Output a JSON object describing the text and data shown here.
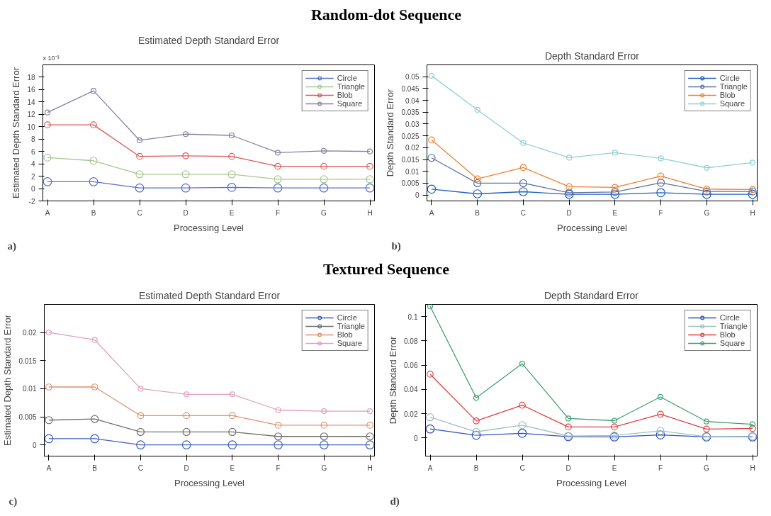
{
  "chart_data": [
    {
      "type": "line",
      "title": "Estimated Depth Standard Error",
      "xlabel": "Processing Level",
      "ylabel": "Estimated Depth Standard Error",
      "annotations": [
        "Random-dot Sequence",
        "x 10⁻³",
        "a)"
      ],
      "categories": [
        "A",
        "B",
        "C",
        "D",
        "E",
        "F",
        "G",
        "H"
      ],
      "ylim": [
        -2,
        20
      ],
      "yticks": [
        -2,
        0,
        2,
        4,
        6,
        8,
        10,
        12,
        14,
        16,
        18
      ],
      "grid": false,
      "legend": "top right",
      "marker": "circle",
      "series": [
        {
          "name": "Circle",
          "color": "#5a6fd0",
          "values": [
            1.1,
            1.1,
            0.1,
            0.1,
            0.2,
            0.1,
            0.1,
            0.1
          ]
        },
        {
          "name": "Triangle",
          "color": "#a8c890",
          "values": [
            5.0,
            4.5,
            2.3,
            2.3,
            2.3,
            1.5,
            1.5,
            1.5
          ]
        },
        {
          "name": "Blob",
          "color": "#e05858",
          "values": [
            10.3,
            10.3,
            5.2,
            5.3,
            5.2,
            3.6,
            3.6,
            3.6
          ]
        },
        {
          "name": "Square",
          "color": "#8a80a0",
          "values": [
            12.3,
            15.8,
            7.8,
            8.8,
            8.6,
            5.8,
            6.1,
            6.0
          ]
        }
      ]
    },
    {
      "type": "line",
      "title": "Depth Standard Error",
      "xlabel": "Processing Level",
      "ylabel": "Depth Standard Error",
      "annotations": [
        "b)"
      ],
      "categories": [
        "A",
        "B",
        "C",
        "D",
        "E",
        "F",
        "G",
        "H"
      ],
      "ylim": [
        -0.0025,
        0.055
      ],
      "yticks": [
        0,
        0.005,
        0.01,
        0.015,
        0.02,
        0.025,
        0.03,
        0.035,
        0.04,
        0.045,
        0.05
      ],
      "grid": false,
      "legend": "top right",
      "marker": "circle",
      "series": [
        {
          "name": "Circle",
          "color": "#2060c0",
          "values": [
            0.0025,
            0.0005,
            0.0014,
            0.0003,
            0.0003,
            0.001,
            0.0003,
            0.0003
          ]
        },
        {
          "name": "Triangle",
          "color": "#6070a0",
          "values": [
            0.0157,
            0.005,
            0.005,
            0.001,
            0.0013,
            0.0052,
            0.0015,
            0.0015
          ]
        },
        {
          "name": "Blob",
          "color": "#f08030",
          "values": [
            0.0233,
            0.0068,
            0.0116,
            0.0035,
            0.0032,
            0.008,
            0.0025,
            0.0023
          ]
        },
        {
          "name": "Square",
          "color": "#90d0d0",
          "values": [
            0.0504,
            0.036,
            0.022,
            0.0158,
            0.0179,
            0.0155,
            0.0115,
            0.0137
          ]
        }
      ]
    },
    {
      "type": "line",
      "title": "Estimated Depth Standard Error",
      "xlabel": "Processing Level",
      "ylabel": "Estimated Depth Standard Error",
      "annotations": [
        "Textured Sequence",
        "c)"
      ],
      "categories": [
        "A",
        "B",
        "C",
        "D",
        "E",
        "F",
        "G",
        "H"
      ],
      "ylim": [
        -0.002,
        0.025
      ],
      "yticks": [
        0,
        0.005,
        0.01,
        0.015,
        0.02
      ],
      "grid": false,
      "legend": "top right",
      "marker": "circle",
      "series": [
        {
          "name": "Circle",
          "color": "#4060c0",
          "values": [
            0.0011,
            0.0011,
            0,
            0,
            0,
            0,
            0,
            0
          ]
        },
        {
          "name": "Triangle",
          "color": "#707070",
          "values": [
            0.0044,
            0.0046,
            0.0023,
            0.0023,
            0.0023,
            0.0015,
            0.0015,
            0.0015
          ]
        },
        {
          "name": "Blob",
          "color": "#e09070",
          "values": [
            0.0103,
            0.0103,
            0.0052,
            0.0052,
            0.0052,
            0.0035,
            0.0035,
            0.0035
          ]
        },
        {
          "name": "Square",
          "color": "#e0a0c0",
          "values": [
            0.02,
            0.0187,
            0.01,
            0.009,
            0.009,
            0.0062,
            0.006,
            0.006
          ]
        }
      ]
    },
    {
      "type": "line",
      "title": "Depth Standard Error",
      "xlabel": "Processing Level",
      "ylabel": "Depth Standard Error",
      "annotations": [
        "d)"
      ],
      "categories": [
        "A",
        "B",
        "C",
        "D",
        "E",
        "F",
        "G",
        "H"
      ],
      "ylim": [
        -0.015,
        0.11
      ],
      "yticks": [
        0,
        0.02,
        0.04,
        0.06,
        0.08,
        0.1
      ],
      "grid": false,
      "legend": "top right",
      "marker": "circle",
      "series": [
        {
          "name": "Circle",
          "color": "#3050c0",
          "values": [
            0.0074,
            0.0022,
            0.0038,
            0.001,
            0.0008,
            0.0025,
            0.0008,
            0.0008
          ]
        },
        {
          "name": "Triangle",
          "color": "#a0c0c0",
          "values": [
            0.017,
            0.005,
            0.0105,
            0.0015,
            0.002,
            0.0058,
            0.001,
            0.0012
          ]
        },
        {
          "name": "Blob",
          "color": "#e04040",
          "values": [
            0.0525,
            0.014,
            0.027,
            0.009,
            0.009,
            0.0195,
            0.0073,
            0.0078
          ]
        },
        {
          "name": "Square",
          "color": "#40a070",
          "values": [
            0.1084,
            0.033,
            0.0612,
            0.016,
            0.0142,
            0.0338,
            0.0135,
            0.0112
          ]
        }
      ]
    }
  ]
}
